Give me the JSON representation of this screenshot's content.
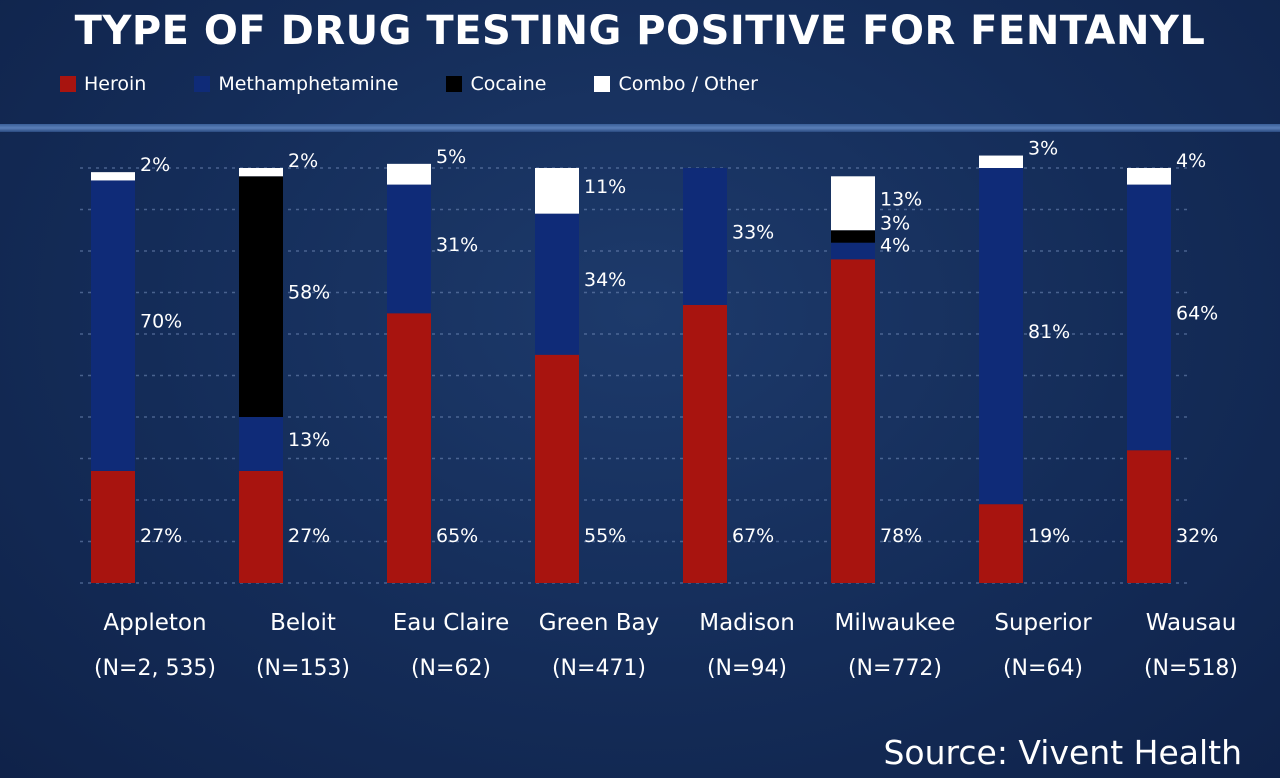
{
  "chart_data": {
    "type": "bar",
    "stacked": true,
    "title": "TYPE OF DRUG TESTING POSITIVE FOR FENTANYL",
    "source": "Source: Vivent Health",
    "ylim": [
      0,
      100
    ],
    "categories": [
      "Appleton",
      "Beloit",
      "Eau Claire",
      "Green Bay",
      "Madison",
      "Milwaukee",
      "Superior",
      "Wausau"
    ],
    "sample_sizes": [
      "(N=2, 535)",
      "(N=153)",
      "(N=62)",
      "(N=471)",
      "(N=94)",
      "(N=772)",
      "(N=64)",
      "(N=518)"
    ],
    "series": [
      {
        "name": "Heroin",
        "color": "#a8140f",
        "values": [
          27,
          27,
          65,
          55,
          67,
          78,
          19,
          32
        ],
        "labels": [
          "27%",
          "27%",
          "65%",
          "55%",
          "67%",
          "78%",
          "19%",
          "32%"
        ]
      },
      {
        "name": "Methamphetamine",
        "color": "#0f2b78",
        "values": [
          70,
          13,
          31,
          34,
          33,
          4,
          81,
          64
        ],
        "labels": [
          "70%",
          "13%",
          "31%",
          "34%",
          "33%",
          "4%",
          "81%",
          "64%"
        ]
      },
      {
        "name": "Cocaine",
        "color": "#000000",
        "values": [
          0,
          58,
          0,
          0,
          0,
          3,
          0,
          0
        ],
        "labels": [
          "",
          "58%",
          "",
          "",
          "",
          "3%",
          "",
          ""
        ]
      },
      {
        "name": "Combo / Other",
        "color": "#ffffff",
        "values": [
          2,
          2,
          5,
          11,
          0,
          13,
          3,
          4
        ],
        "labels": [
          "2%",
          "2%",
          "5%",
          "11%",
          "",
          "13%",
          "3%",
          "4%"
        ]
      }
    ]
  }
}
